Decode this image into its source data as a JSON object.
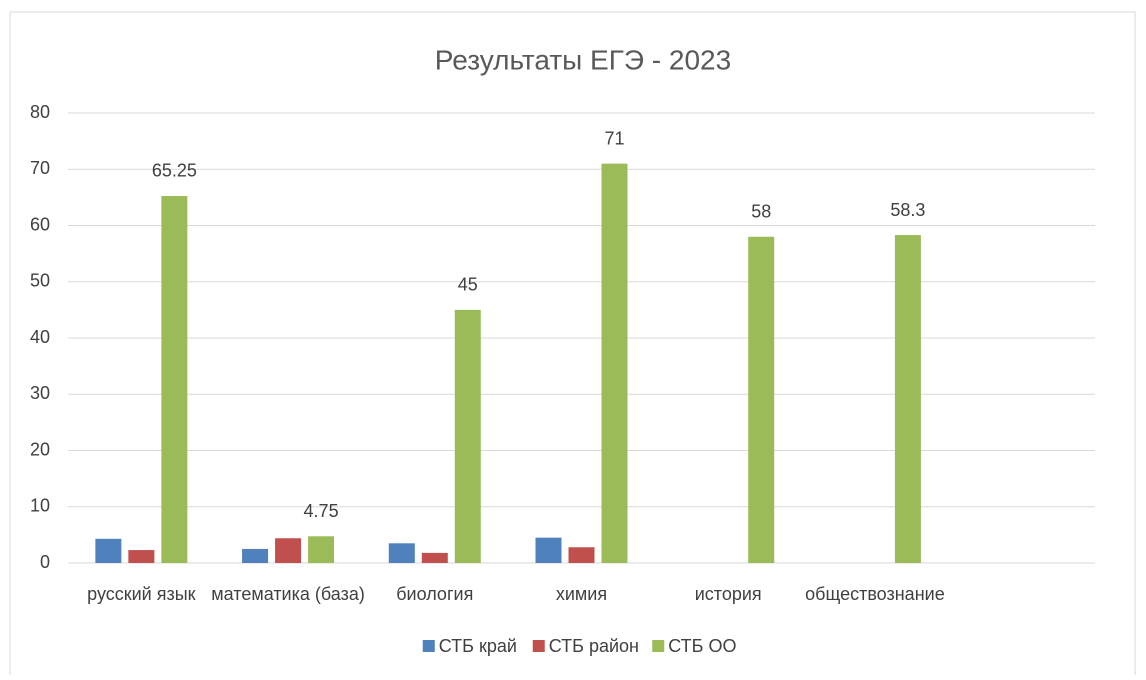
{
  "chart_data": {
    "type": "bar",
    "title": "Результаты ЕГЭ - 2023",
    "categories": [
      "русский язык",
      "математика (база)",
      "биология",
      "химия",
      "история",
      "обществознание",
      null
    ],
    "series": [
      {
        "name": "СТБ край",
        "color": "#4f81bd",
        "values": [
          4.3,
          2.5,
          3.5,
          4.5,
          null,
          null,
          null
        ]
      },
      {
        "name": "СТБ район",
        "color": "#c0504d",
        "values": [
          2.3,
          4.4,
          1.8,
          2.8,
          null,
          null,
          null
        ]
      },
      {
        "name": "СТБ ОО",
        "color": "#9bbb59",
        "values": [
          65.25,
          4.75,
          45,
          71,
          58,
          58.3,
          null
        ],
        "data_labels": true
      }
    ],
    "ylim": [
      0,
      80
    ],
    "yticks": [
      0,
      10,
      20,
      30,
      40,
      50,
      60,
      70,
      80
    ],
    "grid": true,
    "legend": "bottom"
  }
}
